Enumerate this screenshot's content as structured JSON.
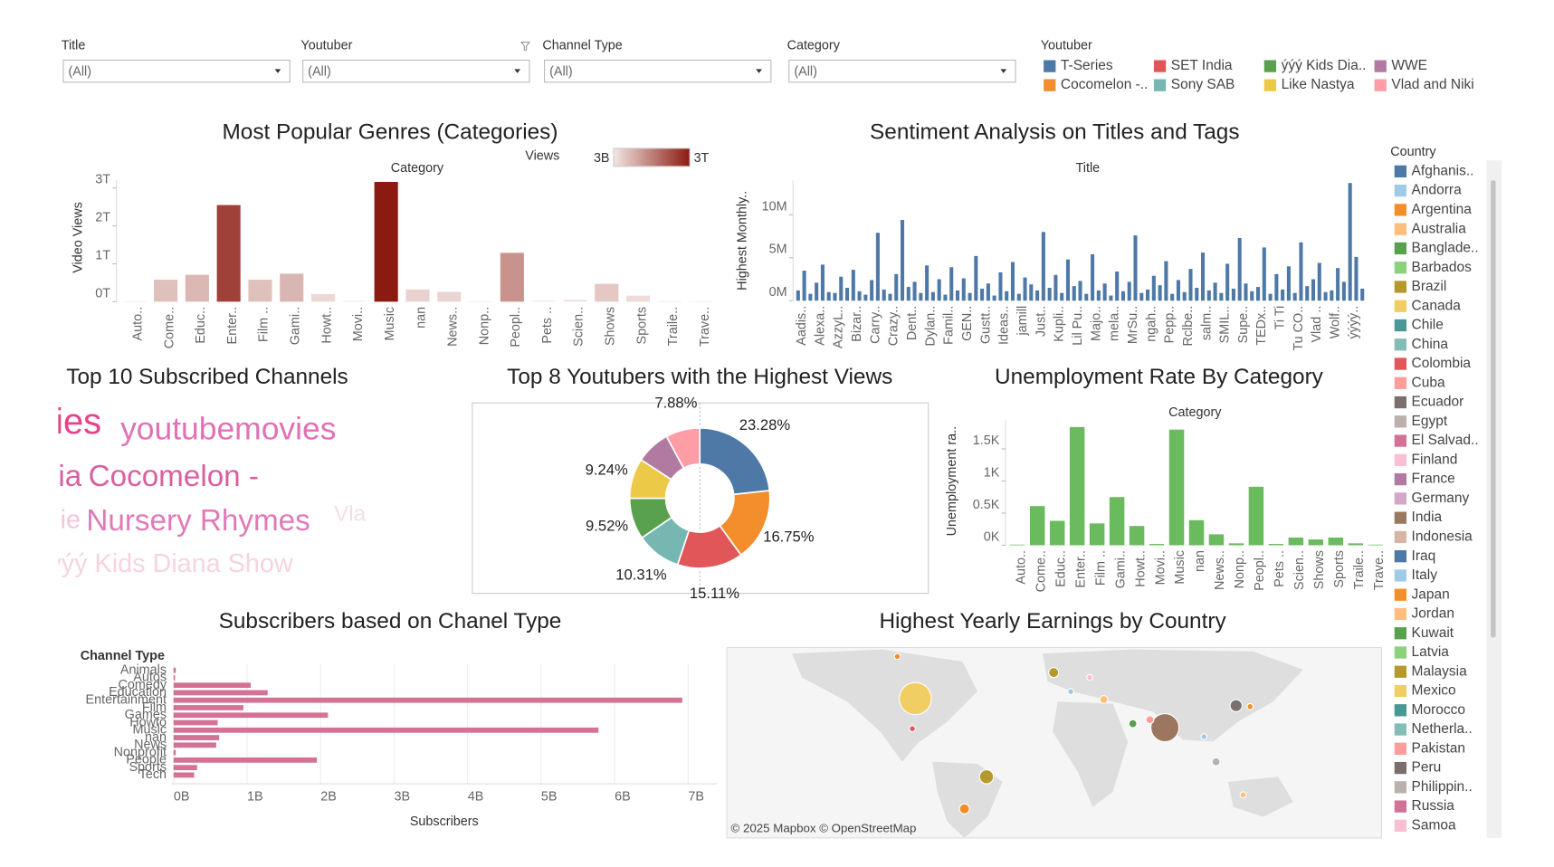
{
  "filters": [
    {
      "label": "Title",
      "value": "(All)"
    },
    {
      "label": "Youtuber",
      "value": "(All)"
    },
    {
      "label": "Channel Type",
      "value": "(All)"
    },
    {
      "label": "Category",
      "value": "(All)"
    }
  ],
  "youtuber_legend": {
    "title": "Youtuber",
    "items": [
      {
        "name": "T-Series",
        "color": "#4e79a7"
      },
      {
        "name": "Cocomelon -..",
        "color": "#f28e2b"
      },
      {
        "name": "SET India",
        "color": "#e15759"
      },
      {
        "name": "Sony SAB",
        "color": "#76b7b2"
      },
      {
        "name": "ýýý Kids Dia..",
        "color": "#59a14f"
      },
      {
        "name": "Like Nastya",
        "color": "#edc948"
      },
      {
        "name": "WWE",
        "color": "#b07aa1"
      },
      {
        "name": "Vlad and Niki",
        "color": "#ff9da7"
      }
    ]
  },
  "chart_data": [
    {
      "type": "bar",
      "title": "Most Popular Genres (Categories)",
      "x_label": "Category",
      "y_label": "Video Views",
      "categories": [
        "Auto..",
        "Come..",
        "Educ..",
        "Enter..",
        "Film ..",
        "Gami..",
        "Howt..",
        "Movi..",
        "Music",
        "nan",
        "News..",
        "Nonp..",
        "Peopl..",
        "Pets ..",
        "Scien..",
        "Shows",
        "Sports",
        "Traile..",
        "Trave.."
      ],
      "values": [
        0.01,
        0.58,
        0.71,
        2.55,
        0.58,
        0.74,
        0.2,
        0.02,
        3.16,
        0.32,
        0.26,
        0.01,
        1.29,
        0.03,
        0.05,
        0.47,
        0.16,
        0.01,
        0.01
      ],
      "ylim": [
        0,
        3.2
      ],
      "yticks": [
        {
          "value": 0,
          "label": "0T"
        },
        {
          "value": 1,
          "label": "1T"
        },
        {
          "value": 2,
          "label": "2T"
        },
        {
          "value": 3,
          "label": "3T"
        }
      ],
      "color_scale": {
        "title": "Views",
        "min_label": "3B",
        "max_label": "3T",
        "colors": [
          "#f2e6e3",
          "#8b1a10"
        ]
      },
      "grid": false
    },
    {
      "type": "bar",
      "title": "Sentiment Analysis on Titles and Tags",
      "x_label": "Title",
      "y_label": "Highest Monthly..",
      "categories": [
        "Aadis..",
        null,
        null,
        "Alexa..",
        null,
        null,
        "AzzyL..",
        null,
        null,
        "Bizar..",
        null,
        null,
        "Carry..",
        null,
        null,
        "Crazy..",
        null,
        null,
        "Dent..",
        null,
        null,
        "Dylan..",
        null,
        null,
        "Famil..",
        null,
        null,
        "GEN..",
        null,
        null,
        "Gustt..",
        null,
        null,
        "Ideas..",
        null,
        null,
        "jamill",
        null,
        null,
        "Just..",
        null,
        null,
        "Kupli..",
        null,
        null,
        "Lil Pu..",
        null,
        null,
        "Majo..",
        null,
        null,
        "mela..",
        null,
        null,
        "MrSu..",
        null,
        null,
        "ngah..",
        null,
        null,
        "Pepp..",
        null,
        null,
        "Rclbe..",
        null,
        null,
        "salm..",
        null,
        null,
        "SMIL..",
        null,
        null,
        "Supe..",
        null,
        null,
        "TEDx..",
        null,
        null,
        "Ti Ti",
        null,
        null,
        "Tu CO..",
        null,
        null,
        "Vlad ..",
        null,
        null,
        "Wolf..",
        null,
        null,
        "ýýýý..",
        null,
        null
      ],
      "values": [
        1.2,
        3.5,
        0.8,
        2.1,
        4.2,
        1.0,
        0.9,
        2.8,
        1.5,
        3.6,
        1.1,
        0.7,
        2.4,
        7.9,
        1.3,
        0.8,
        3.1,
        9.4,
        1.6,
        2.2,
        0.9,
        4.1,
        1.0,
        2.5,
        0.7,
        3.9,
        1.2,
        2.6,
        0.9,
        5.2,
        1.4,
        2.0,
        0.6,
        3.3,
        1.1,
        4.5,
        0.8,
        2.7,
        1.9,
        1.2,
        8.0,
        1.5,
        3.0,
        0.9,
        4.8,
        1.7,
        2.3,
        0.8,
        5.4,
        1.2,
        2.0,
        0.6,
        3.4,
        1.1,
        2.2,
        7.6,
        0.9,
        1.3,
        2.9,
        1.8,
        4.6,
        0.8,
        2.4,
        1.0,
        3.7,
        1.5,
        5.6,
        1.2,
        2.1,
        0.9,
        4.3,
        1.4,
        7.3,
        2.0,
        1.1,
        1.6,
        6.2,
        0.8,
        3.1,
        1.3,
        4.0,
        0.9,
        6.8,
        1.7,
        2.5,
        4.4,
        1.0,
        1.2,
        3.8,
        2.2,
        13.7,
        5.1,
        1.4
      ],
      "ylim": [
        0,
        14
      ],
      "yticks": [
        {
          "value": 0,
          "label": "0M"
        },
        {
          "value": 5,
          "label": "5M"
        },
        {
          "value": 10,
          "label": "10M"
        }
      ],
      "color": "#4e79a7",
      "grid": false
    },
    {
      "type": "wordcloud",
      "title": "Top 10 Subscribed Channels",
      "words": [
        {
          "text": "ies",
          "color": "#e8408a"
        },
        {
          "text": "youtubemovies",
          "color": "#e171b6"
        },
        {
          "text": "ia",
          "color": "#d9609f"
        },
        {
          "text": "Cocomelon -",
          "color": "#d9609f"
        },
        {
          "text": "ie",
          "color": "#f1c6d9"
        },
        {
          "text": "Nursery Rhymes",
          "color": "#e07ab7"
        },
        {
          "text": "Vla",
          "color": "#f4dde8"
        },
        {
          "text": "ýýý Kids Diana Show",
          "color": "#f6d3e0"
        }
      ]
    },
    {
      "type": "donut",
      "title": "Top 8 Youtubers with the Highest Views",
      "categories": [
        "T-Series",
        "Cocomelon -..",
        "SET India",
        "Sony SAB",
        "ýýý Kids Dia..",
        "Like Nastya",
        "WWE",
        "Vlad and Niki"
      ],
      "values": [
        23.28,
        16.75,
        15.11,
        10.31,
        9.52,
        9.24,
        7.91,
        7.88
      ],
      "value_labels": [
        "23.28%",
        "16.75%",
        "15.11%",
        "10.31%",
        "9.52%",
        "9.24%",
        null,
        "7.88%"
      ],
      "colors": [
        "#4e79a7",
        "#f28e2b",
        "#e15759",
        "#76b7b2",
        "#59a14f",
        "#edc948",
        "#b07aa1",
        "#ff9da7"
      ]
    },
    {
      "type": "bar",
      "title": "Unemployment Rate By Category",
      "x_label": "Category",
      "y_label": "Unemployment ra..",
      "categories": [
        "Auto..",
        "Come..",
        "Educ..",
        "Enter..",
        "Film ..",
        "Gami..",
        "Howt..",
        "Movi..",
        "Music",
        "nan",
        "News..",
        "Nonp..",
        "Peopl..",
        "Pets ..",
        "Scien..",
        "Shows",
        "Sports",
        "Traile..",
        "Trave.."
      ],
      "values": [
        0.01,
        0.61,
        0.38,
        1.84,
        0.34,
        0.75,
        0.3,
        0.02,
        1.8,
        0.39,
        0.17,
        0.03,
        0.91,
        0.02,
        0.12,
        0.09,
        0.12,
        0.03,
        0.01
      ],
      "ylim": [
        0,
        1.95
      ],
      "yticks": [
        {
          "value": 0,
          "label": "0K"
        },
        {
          "value": 0.5,
          "label": "0.5K"
        },
        {
          "value": 1,
          "label": "1K"
        },
        {
          "value": 1.5,
          "label": "1.5K"
        }
      ],
      "color": "#6aba5e",
      "grid": false
    },
    {
      "type": "hbar",
      "title": "Subscribers based on Chanel Type",
      "y_label": "Channel Type",
      "x_label": "Subscribers",
      "categories": [
        "Animals",
        "Autos",
        "Comedy",
        "Education",
        "Entertainment",
        "Film",
        "Games",
        "Howto",
        "Music",
        "nan",
        "News",
        "Nonprofit",
        "People",
        "Sports",
        "Tech"
      ],
      "values": [
        0.03,
        0.02,
        1.05,
        1.28,
        6.92,
        0.95,
        2.1,
        0.6,
        5.78,
        0.62,
        0.58,
        0.03,
        1.95,
        0.32,
        0.28
      ],
      "xlim": [
        0,
        7.3
      ],
      "xticks": [
        {
          "value": 0,
          "label": "0B"
        },
        {
          "value": 1,
          "label": "1B"
        },
        {
          "value": 2,
          "label": "2B"
        },
        {
          "value": 3,
          "label": "3B"
        },
        {
          "value": 4,
          "label": "4B"
        },
        {
          "value": 5,
          "label": "5B"
        },
        {
          "value": 6,
          "label": "6B"
        },
        {
          "value": 7,
          "label": "7B"
        }
      ],
      "color": "#d37295",
      "grid": true
    },
    {
      "type": "map",
      "title": "Highest Yearly Earnings by Country",
      "attribution": "© 2025 Mapbox © OpenStreetMap",
      "legend": {
        "title": "Country",
        "items": [
          {
            "name": "Afghanis..",
            "color": "#4e79a7"
          },
          {
            "name": "Andorra",
            "color": "#a0cbe8"
          },
          {
            "name": "Argentina",
            "color": "#f28e2b"
          },
          {
            "name": "Australia",
            "color": "#ffbe7d"
          },
          {
            "name": "Banglade..",
            "color": "#59a14f"
          },
          {
            "name": "Barbados",
            "color": "#8cd17d"
          },
          {
            "name": "Brazil",
            "color": "#b6992d"
          },
          {
            "name": "Canada",
            "color": "#f1ce63"
          },
          {
            "name": "Chile",
            "color": "#499894"
          },
          {
            "name": "China",
            "color": "#86bcb6"
          },
          {
            "name": "Colombia",
            "color": "#e15759"
          },
          {
            "name": "Cuba",
            "color": "#ff9d9a"
          },
          {
            "name": "Ecuador",
            "color": "#79706e"
          },
          {
            "name": "Egypt",
            "color": "#bab0ac"
          },
          {
            "name": "El Salvad..",
            "color": "#d37295"
          },
          {
            "name": "Finland",
            "color": "#fabfd2"
          },
          {
            "name": "France",
            "color": "#b07aa1"
          },
          {
            "name": "Germany",
            "color": "#d4a6c8"
          },
          {
            "name": "India",
            "color": "#9d7660"
          },
          {
            "name": "Indonesia",
            "color": "#d7b5a6"
          },
          {
            "name": "Iraq",
            "color": "#4e79a7"
          },
          {
            "name": "Italy",
            "color": "#a0cbe8"
          },
          {
            "name": "Japan",
            "color": "#f28e2b"
          },
          {
            "name": "Jordan",
            "color": "#ffbe7d"
          },
          {
            "name": "Kuwait",
            "color": "#59a14f"
          },
          {
            "name": "Latvia",
            "color": "#8cd17d"
          },
          {
            "name": "Malaysia",
            "color": "#b6992d"
          },
          {
            "name": "Mexico",
            "color": "#f1ce63"
          },
          {
            "name": "Morocco",
            "color": "#499894"
          },
          {
            "name": "Netherla..",
            "color": "#86bcb6"
          },
          {
            "name": "Pakistan",
            "color": "#ff9d9a"
          },
          {
            "name": "Peru",
            "color": "#79706e"
          },
          {
            "name": "Philippin..",
            "color": "#bab0ac"
          },
          {
            "name": "Russia",
            "color": "#d37295"
          },
          {
            "name": "Samoa",
            "color": "#fabfd2"
          }
        ]
      }
    }
  ]
}
